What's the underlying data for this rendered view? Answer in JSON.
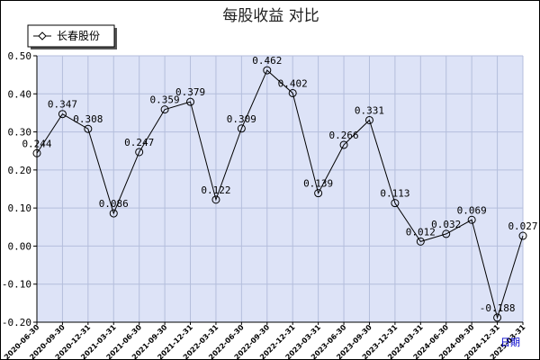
{
  "chart_data": {
    "type": "line",
    "title": "每股收益  对比",
    "xlabel": "日期",
    "ylabel": "",
    "ylim": [
      -0.2,
      0.5
    ],
    "yticks": [
      "0.50",
      "0.40",
      "0.30",
      "0.20",
      "0.10",
      "0.00",
      "-0.10",
      "-0.20"
    ],
    "grid": true,
    "legend_position": "top-left",
    "categories": [
      "2020-06-30",
      "2020-09-30",
      "2020-12-31",
      "2021-03-31",
      "2021-06-30",
      "2021-09-30",
      "2021-12-31",
      "2022-03-31",
      "2022-06-30",
      "2022-09-30",
      "2022-12-31",
      "2023-03-31",
      "2023-06-30",
      "2023-09-30",
      "2023-12-31",
      "2024-03-31",
      "2024-06-30",
      "2024-09-30",
      "2024-12-31",
      "2025-03-31"
    ],
    "series": [
      {
        "name": "长春股份",
        "values": [
          0.244,
          0.347,
          0.308,
          0.086,
          0.247,
          0.359,
          0.379,
          0.122,
          0.309,
          0.462,
          0.402,
          0.139,
          0.266,
          0.331,
          0.113,
          0.012,
          0.032,
          0.069,
          -0.188,
          0.027
        ],
        "labels": [
          "0.244",
          "0.347",
          "0.308",
          "0.086",
          "0.247",
          "0.359",
          "0.379",
          "0.122",
          "0.309",
          "0.462",
          "0.402",
          "0.139",
          "0.266",
          "0.331",
          "0.113",
          "0.012",
          "0.032",
          "0.069",
          "-0.188",
          "0.027"
        ]
      }
    ]
  },
  "colors": {
    "plot_background": "#dde3f7",
    "grid": "#b4bedc",
    "line": "#000000",
    "xlabel": "#0000cc"
  }
}
